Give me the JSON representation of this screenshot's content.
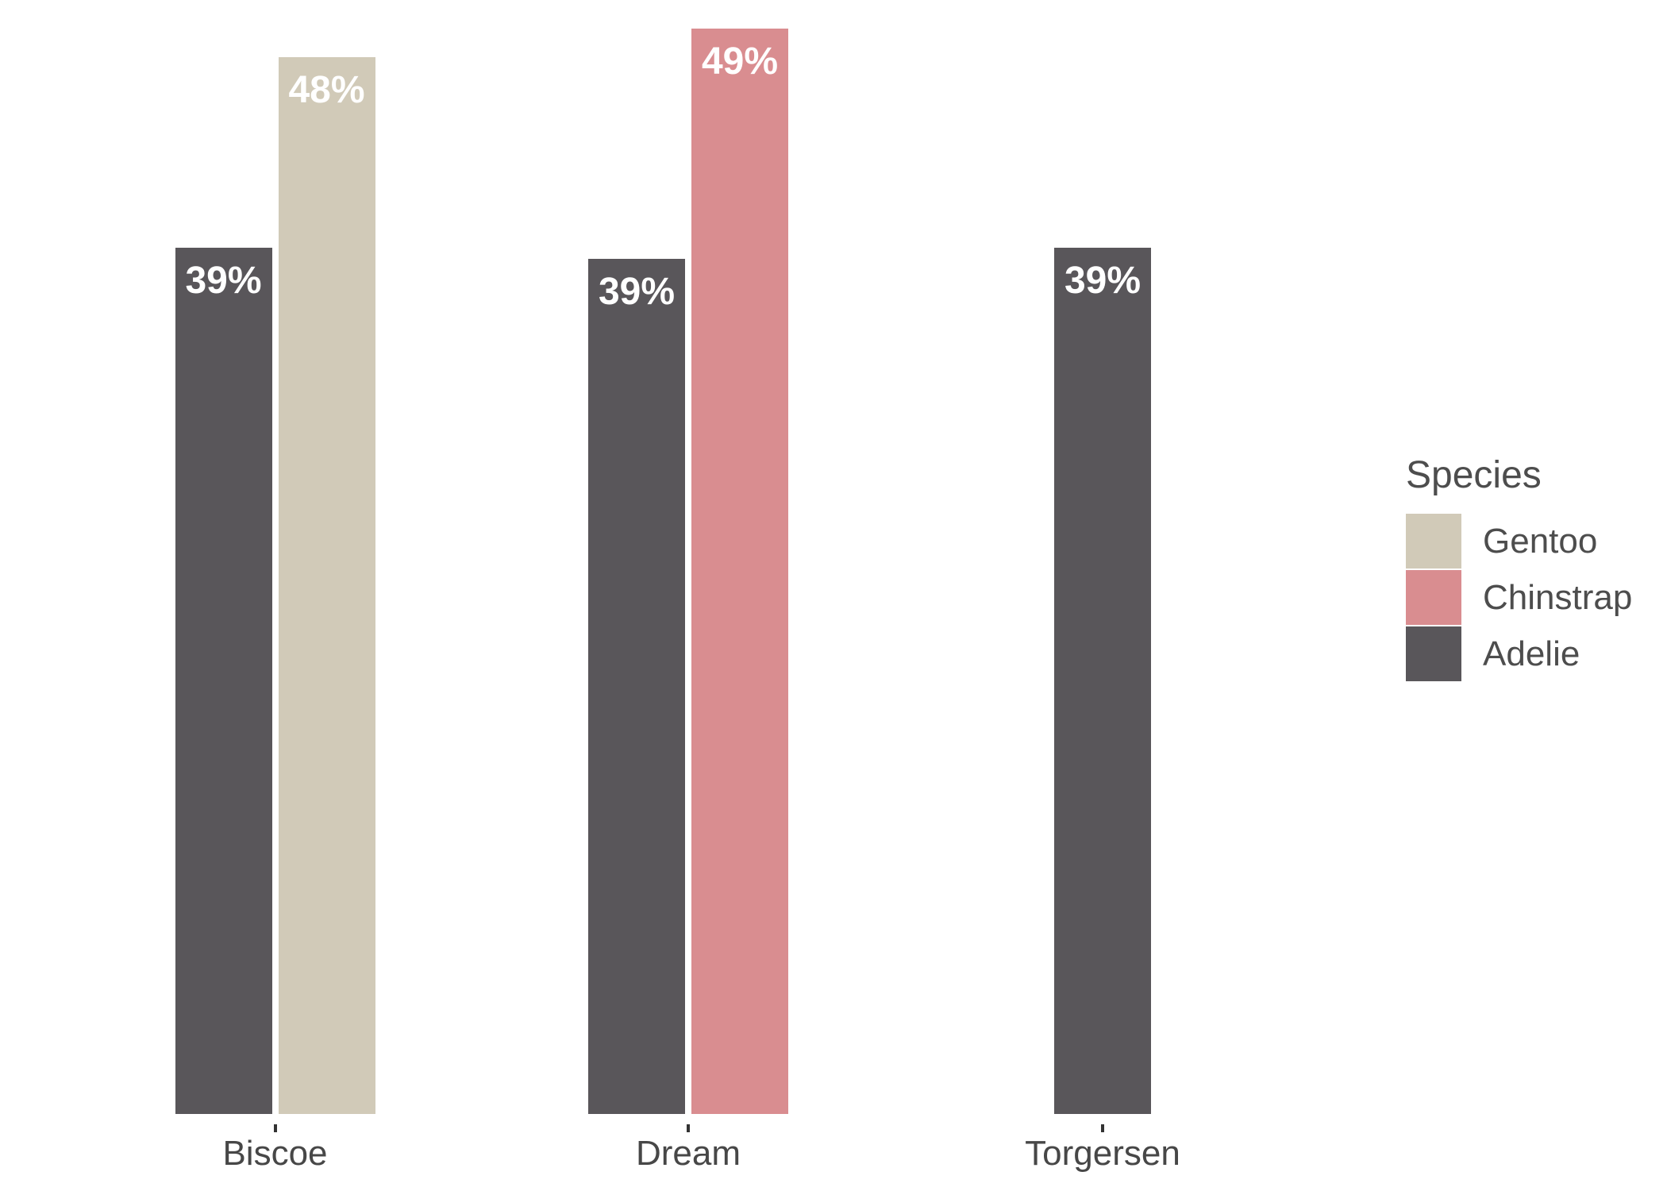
{
  "chart_data": {
    "type": "bar",
    "grouping": "dodged",
    "orientation": "vertical",
    "title": "",
    "xlabel": "",
    "ylabel": "",
    "categories": [
      "Biscoe",
      "Dream",
      "Torgersen"
    ],
    "groups": [
      {
        "category": "Biscoe",
        "bars": [
          {
            "species": "Adelie",
            "value_pct": 39.1,
            "label": "39%"
          },
          {
            "species": "Gentoo",
            "value_pct": 47.7,
            "label": "48%"
          }
        ]
      },
      {
        "category": "Dream",
        "bars": [
          {
            "species": "Adelie",
            "value_pct": 38.6,
            "label": "39%"
          },
          {
            "species": "Chinstrap",
            "value_pct": 49.0,
            "label": "49%"
          }
        ]
      },
      {
        "category": "Torgersen",
        "bars": [
          {
            "species": "Adelie",
            "value_pct": 39.1,
            "label": "39%"
          }
        ]
      }
    ],
    "series_colors": {
      "Gentoo": "#d1cab8",
      "Chinstrap": "#d98d90",
      "Adelie": "#59565a"
    },
    "value_axis": {
      "visible": false,
      "min": 0,
      "max_value_shown": 49,
      "unit": "percent"
    },
    "grid": "off",
    "bar_label_color": "#ffffff",
    "axis_text_color": "#474747",
    "tick_color": "#333333",
    "background_color": "#ffffff",
    "legend": {
      "title": "Species",
      "position": "right",
      "entries": [
        {
          "label": "Gentoo",
          "color": "#d1cab8"
        },
        {
          "label": "Chinstrap",
          "color": "#d98d90"
        },
        {
          "label": "Adelie",
          "color": "#59565a"
        }
      ]
    }
  }
}
